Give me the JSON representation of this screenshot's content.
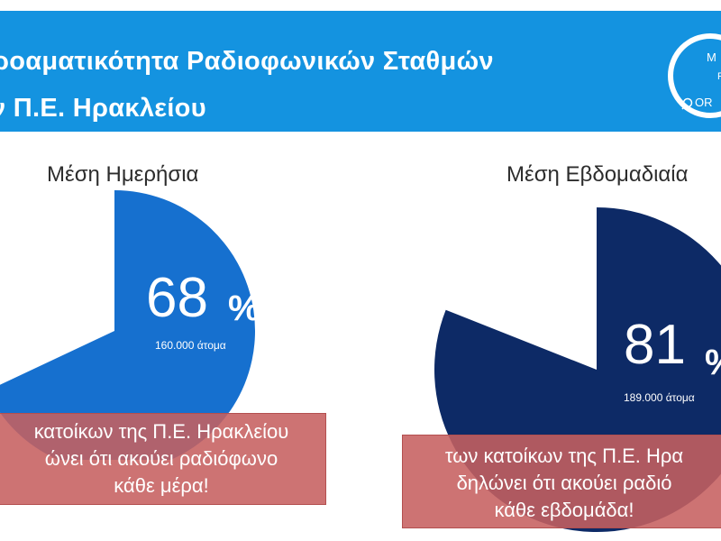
{
  "header": {
    "title_line1": "ροαματικότητα Ραδιοφωνικών Σταθμών",
    "title_line2": "ν Π.Ε. Ηρακλείου",
    "badge_letter_top": "M",
    "badge_letter_mid": "F",
    "badge_letters_bottom": "OR"
  },
  "colors": {
    "banner": "#1493e0",
    "daily_slice": "#1670cf",
    "weekly_slice": "#0d2a66",
    "callout": "#c66060"
  },
  "chart_data": [
    {
      "type": "pie",
      "title": "Μέση Ημερήσια",
      "values": [
        68
      ],
      "value_label": "68",
      "unit": "%",
      "people": "160.000 άτομα",
      "caption_lines": [
        "κατοίκων της Π.Ε. Ηρακλείου",
        "ώνει ότι ακούει ραδιόφωνο",
        "κάθε μέρα!"
      ]
    },
    {
      "type": "pie",
      "title": "Μέση Εβδομαδιαία",
      "values": [
        81
      ],
      "value_label": "81",
      "unit": "%",
      "people": "189.000 άτομα",
      "caption_lines": [
        "των κατοίκων της Π.Ε. Ηρα",
        "δηλώνει ότι ακούει ραδιό",
        "κάθε εβδομάδα!"
      ]
    }
  ]
}
